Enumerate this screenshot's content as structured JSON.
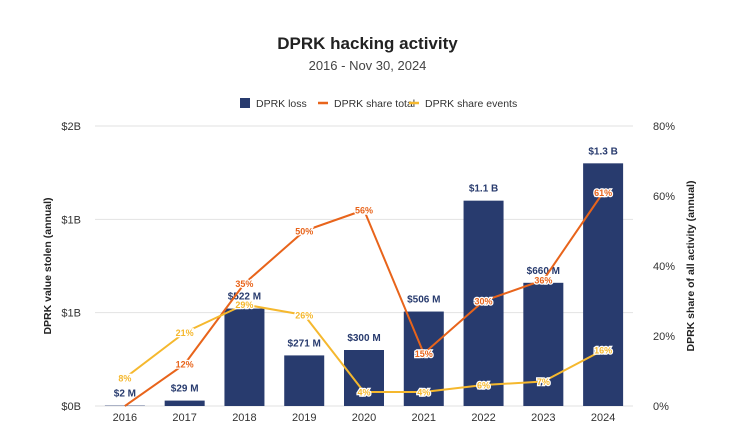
{
  "chart_data": {
    "type": "bar",
    "title": "DPRK hacking activity",
    "subtitle": "2016 - Nov 30, 2024",
    "categories": [
      "2016",
      "2017",
      "2018",
      "2019",
      "2020",
      "2021",
      "2022",
      "2023",
      "2024"
    ],
    "series": [
      {
        "name": "DPRK loss",
        "kind": "bar",
        "axis": "left",
        "color": "#283b6e",
        "values": [
          0.002,
          0.029,
          0.522,
          0.271,
          0.3,
          0.506,
          1.1,
          0.66,
          1.3
        ],
        "labels": [
          "$2  M",
          "$29  M",
          "$522  M",
          "$271  M",
          "$300  M",
          "$506  M",
          "$1.1 B",
          "$660  M",
          "$1.3 B"
        ]
      },
      {
        "name": "DPRK share total",
        "kind": "line",
        "axis": "right",
        "color": "#e8641b",
        "values": [
          0,
          12,
          35,
          50,
          56,
          15,
          30,
          36,
          61
        ],
        "labels": [
          "",
          "12%",
          "35%",
          "50%",
          "56%",
          "15%",
          "30%",
          "36%",
          "61%"
        ]
      },
      {
        "name": "DPRK share events",
        "kind": "line",
        "axis": "right",
        "color": "#f5b82e",
        "values": [
          8,
          21,
          29,
          26,
          4,
          4,
          6,
          7,
          16
        ],
        "labels": [
          "8%",
          "21%",
          "29%",
          "26%",
          "4%",
          "4%",
          "6%",
          "7%",
          "16%"
        ]
      }
    ],
    "ylabel": "DPRK value stolen (annual)",
    "y2label": "DPRK share of all activity (annual)",
    "ylim": [
      0,
      1.5
    ],
    "y2lim": [
      0,
      80
    ],
    "yticks": [
      {
        "value": 0,
        "label": "$0B"
      },
      {
        "value": 0.5,
        "label": "$1B"
      },
      {
        "value": 1.0,
        "label": "$1B"
      },
      {
        "value": 1.5,
        "label": "$2B"
      }
    ],
    "y2ticks": [
      {
        "value": 0,
        "label": "0%"
      },
      {
        "value": 20,
        "label": "20%"
      },
      {
        "value": 40,
        "label": "40%"
      },
      {
        "value": 60,
        "label": "60%"
      },
      {
        "value": 80,
        "label": "80%"
      }
    ],
    "legend_position": "top-center",
    "grid": true
  }
}
